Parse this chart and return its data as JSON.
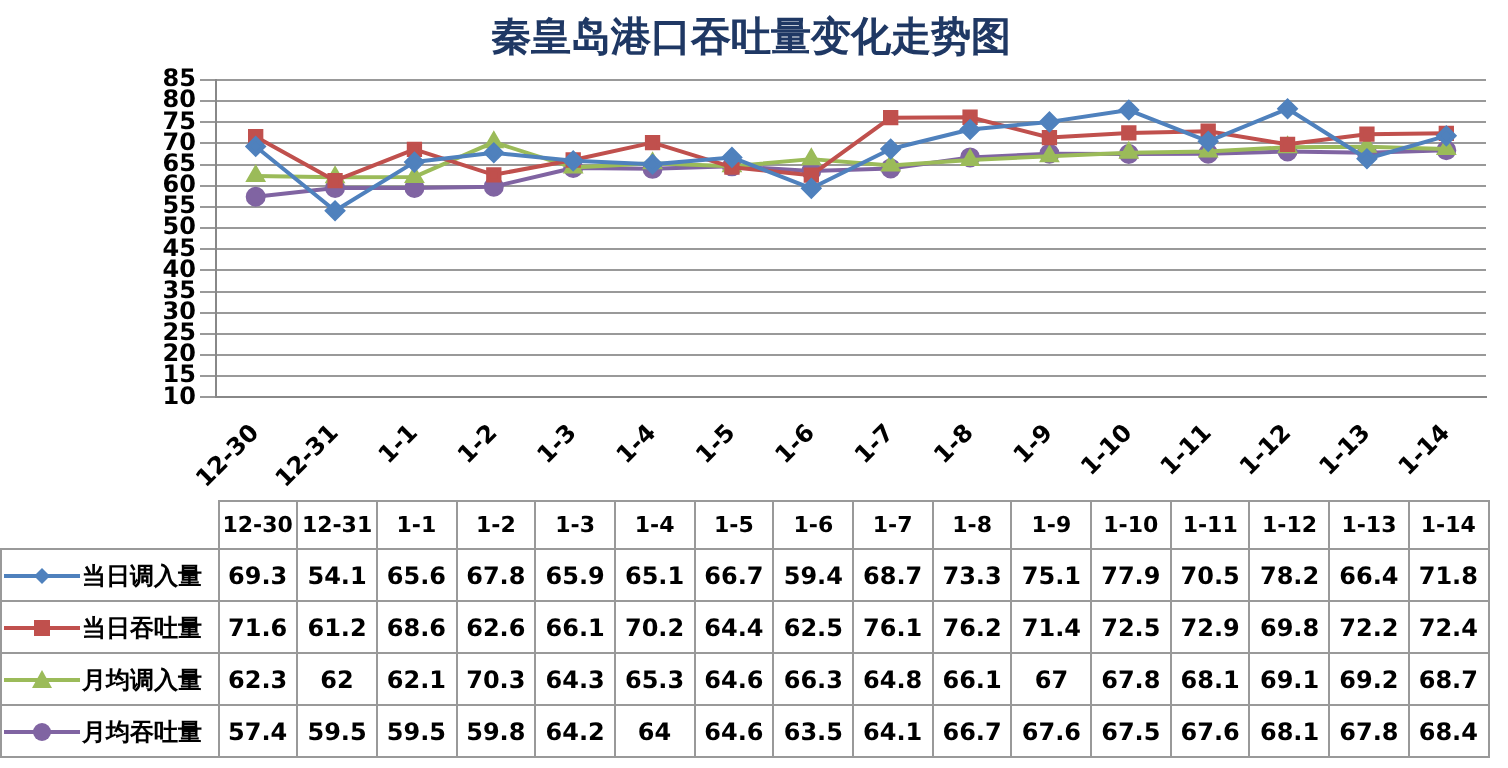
{
  "chart_data": {
    "type": "line",
    "title": "秦皇岛港口吞吐量变化走势图",
    "categories": [
      "12-30",
      "12-31",
      "1-1",
      "1-2",
      "1-3",
      "1-4",
      "1-5",
      "1-6",
      "1-7",
      "1-8",
      "1-9",
      "1-10",
      "1-11",
      "1-12",
      "1-13",
      "1-14"
    ],
    "series": [
      {
        "name": "当日调入量",
        "color": "#4f81bd",
        "marker": "diamond",
        "values": [
          69.3,
          54.1,
          65.6,
          67.8,
          65.9,
          65.1,
          66.7,
          59.4,
          68.7,
          73.3,
          75.1,
          77.9,
          70.5,
          78.2,
          66.4,
          71.8
        ]
      },
      {
        "name": "当日吞吐量",
        "color": "#c0504d",
        "marker": "square",
        "values": [
          71.6,
          61.2,
          68.6,
          62.6,
          66.1,
          70.2,
          64.4,
          62.5,
          76.1,
          76.2,
          71.4,
          72.5,
          72.9,
          69.8,
          72.2,
          72.4
        ]
      },
      {
        "name": "月均调入量",
        "color": "#9bbb59",
        "marker": "triangle",
        "values": [
          62.3,
          62,
          62.1,
          70.3,
          64.3,
          65.3,
          64.6,
          66.3,
          64.8,
          66.1,
          67,
          67.8,
          68.1,
          69.1,
          69.2,
          68.7
        ]
      },
      {
        "name": "月均吞吐量",
        "color": "#8064a2",
        "marker": "circle",
        "values": [
          57.4,
          59.5,
          59.5,
          59.8,
          64.2,
          64,
          64.6,
          63.5,
          64.1,
          66.7,
          67.6,
          67.5,
          67.6,
          68.1,
          67.8,
          68.4
        ]
      }
    ],
    "ylim": [
      10,
      85
    ],
    "yticks": [
      10,
      15,
      20,
      25,
      30,
      35,
      40,
      45,
      50,
      55,
      60,
      65,
      70,
      75,
      80,
      85
    ],
    "grid": "y",
    "legend": "bottom",
    "data_labels": true
  }
}
